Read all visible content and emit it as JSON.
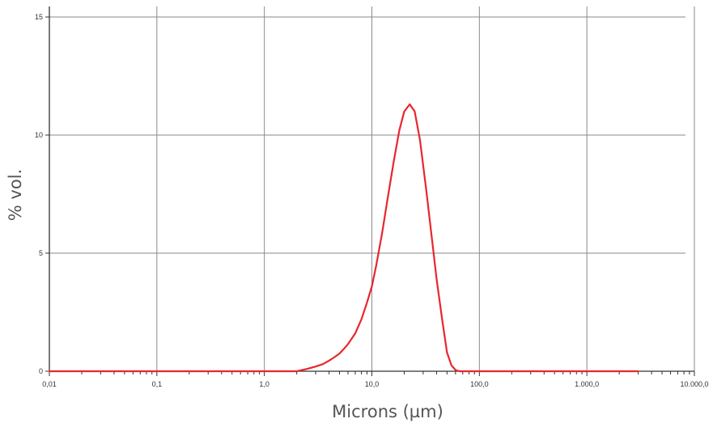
{
  "chart_data": {
    "type": "line",
    "title": "",
    "xlabel": "Microns (µm)",
    "ylabel": "% vol.",
    "x_scale": "log",
    "xlim": [
      0.01,
      10000
    ],
    "ylim": [
      0,
      15
    ],
    "grid": true,
    "x_ticks": [
      {
        "value": 0.01,
        "label": "0,01"
      },
      {
        "value": 0.1,
        "label": "0,1"
      },
      {
        "value": 1,
        "label": "1,0"
      },
      {
        "value": 10,
        "label": "10,0"
      },
      {
        "value": 100,
        "label": "100,0"
      },
      {
        "value": 1000,
        "label": "1.000,0"
      },
      {
        "value": 10000,
        "label": "10.000,0"
      }
    ],
    "y_ticks": [
      {
        "value": 0,
        "label": "0"
      },
      {
        "value": 5,
        "label": "5"
      },
      {
        "value": 10,
        "label": "10"
      },
      {
        "value": 15,
        "label": "15"
      }
    ],
    "series": [
      {
        "color": "#e8262d",
        "x": [
          0.01,
          0.1,
          1.0,
          2.0,
          2.5,
          3.0,
          3.5,
          4.0,
          4.5,
          5.0,
          5.5,
          6.0,
          7.0,
          8.0,
          9.0,
          10.0,
          11.0,
          12.5,
          14.0,
          16.0,
          18.0,
          20.0,
          22.5,
          25.0,
          28.0,
          32.0,
          36.0,
          40.0,
          45.0,
          50.0,
          55.0,
          60.0,
          65.0,
          70.0,
          75.0,
          100.0,
          1000.0,
          3000.0
        ],
        "y": [
          0,
          0,
          0,
          0,
          0.1,
          0.2,
          0.3,
          0.45,
          0.6,
          0.75,
          0.95,
          1.15,
          1.6,
          2.2,
          2.9,
          3.6,
          4.5,
          5.9,
          7.3,
          8.9,
          10.2,
          11.0,
          11.3,
          11.0,
          9.8,
          7.7,
          5.7,
          3.9,
          2.2,
          0.8,
          0.25,
          0.05,
          0,
          0,
          0,
          0,
          0,
          0
        ]
      }
    ]
  }
}
